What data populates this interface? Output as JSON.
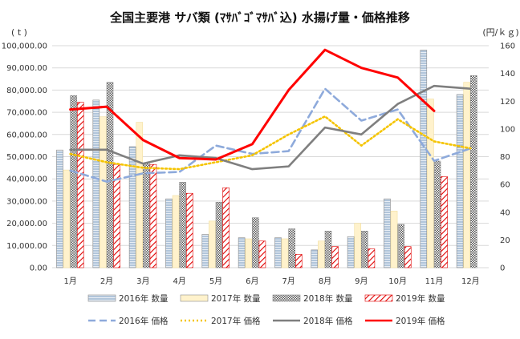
{
  "chart_data": {
    "type": "bar",
    "title": "全国主要港 サバ類 (ﾏｻﾊﾞｺﾞﾏｻﾊﾞ込) 水揚げ量・価格推移",
    "y_left_unit": "( t )",
    "y_right_unit": "(円/ｋｇ)",
    "categories": [
      "1月",
      "2月",
      "3月",
      "4月",
      "5月",
      "6月",
      "7月",
      "8月",
      "9月",
      "10月",
      "11月",
      "12月"
    ],
    "y_left_ticks": [
      "0.00",
      "10,000.00",
      "20,000.00",
      "30,000.00",
      "40,000.00",
      "50,000.00",
      "60,000.00",
      "70,000.00",
      "80,000.00",
      "90,000.00",
      "100,000.00"
    ],
    "y_right_ticks": [
      "0",
      "20",
      "40",
      "60",
      "80",
      "100",
      "120",
      "140",
      "160"
    ],
    "ylim_left": [
      0,
      100000
    ],
    "ylim_right": [
      0,
      160
    ],
    "bar_series": [
      {
        "name": "2016年 数量",
        "color": "#a9c1da",
        "pattern": "hlines",
        "values": [
          53000,
          75500,
          54500,
          31000,
          15000,
          13500,
          13500,
          8000,
          14000,
          31000,
          98000,
          78000
        ]
      },
      {
        "name": "2017年 数量",
        "color": "#fff2cc",
        "pattern": "solid",
        "values": [
          44000,
          68000,
          65500,
          32500,
          21000,
          13000,
          13000,
          12000,
          20000,
          25500,
          76000,
          83500
        ]
      },
      {
        "name": "2018年 数量",
        "color": "#7f7f7f",
        "pattern": "cross",
        "values": [
          77500,
          83500,
          47000,
          38500,
          29500,
          22500,
          17500,
          16500,
          16500,
          19500,
          48000,
          86500
        ]
      },
      {
        "name": "2019年 数量",
        "color": "#e00000",
        "pattern": "diag",
        "values": [
          74500,
          46500,
          46500,
          33500,
          36000,
          12000,
          6000,
          9500,
          8500,
          9500,
          41000,
          null
        ]
      }
    ],
    "line_series": [
      {
        "name": "2016年 価格",
        "color": "#8eaadb",
        "dash": "dash",
        "values": [
          70,
          62,
          68,
          69,
          88,
          82,
          84,
          129,
          106,
          114,
          77,
          86
        ]
      },
      {
        "name": "2017年 価格",
        "color": "#f5c400",
        "dash": "dot",
        "values": [
          82,
          76,
          72,
          71,
          76,
          81,
          96,
          109,
          88,
          107,
          91,
          86
        ]
      },
      {
        "name": "2018年 価格",
        "color": "#7f7f7f",
        "dash": "solid",
        "values": [
          85,
          85,
          75,
          81,
          79,
          71,
          73,
          101,
          96,
          118,
          131,
          129
        ]
      },
      {
        "name": "2019年 価格",
        "color": "#ff0000",
        "dash": "solid",
        "values": [
          114,
          116,
          92,
          79,
          78,
          89,
          128,
          157,
          144,
          137,
          113,
          null
        ]
      }
    ],
    "legend_position": "bottom",
    "grid": true
  }
}
